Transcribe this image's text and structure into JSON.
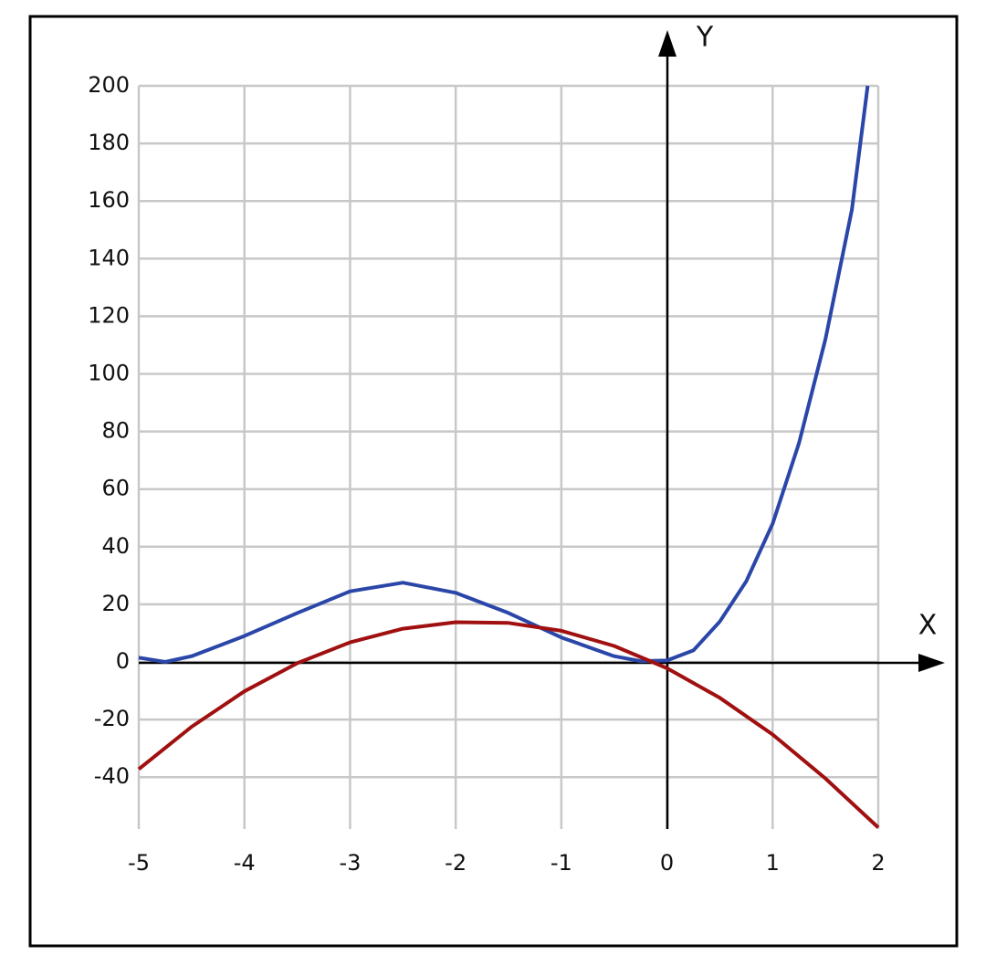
{
  "chart_data": {
    "type": "line",
    "x_label": "X",
    "y_label": "Y",
    "xlim": [
      -5,
      2
    ],
    "ylim": [
      -58,
      200
    ],
    "xticks": [
      -5,
      -4,
      -3,
      -2,
      -1,
      0,
      1,
      2
    ],
    "yticks": [
      -40,
      -20,
      0,
      20,
      40,
      60,
      80,
      100,
      120,
      140,
      160,
      180,
      200
    ],
    "grid": true,
    "series": [
      {
        "color": "#2a46a8",
        "x": [
          -5,
          -4.75,
          -4.5,
          -4,
          -3.5,
          -3,
          -2.5,
          -2,
          -1.5,
          -1,
          -0.5,
          -0.25,
          0,
          0.25,
          0.5,
          0.75,
          1,
          1.25,
          1.5,
          1.75,
          1.9
        ],
        "values": [
          1.5,
          0,
          2,
          9,
          17,
          24.5,
          27.5,
          24,
          17,
          8.5,
          2,
          0.3,
          0.5,
          4,
          14,
          28,
          48,
          76,
          112,
          157,
          200
        ]
      },
      {
        "color": "#a01010",
        "x": [
          -5,
          -4.5,
          -4,
          -3.5,
          -3,
          -2.5,
          -2,
          -1.5,
          -1,
          -0.5,
          0,
          0.5,
          1,
          1.5,
          2
        ],
        "values": [
          -37.2,
          -22.5,
          -10.2,
          -0.45,
          6.8,
          11.55,
          13.8,
          13.55,
          10.8,
          5.55,
          -2.2,
          -12.45,
          -25.2,
          -40.45,
          -57.5
        ]
      }
    ]
  }
}
